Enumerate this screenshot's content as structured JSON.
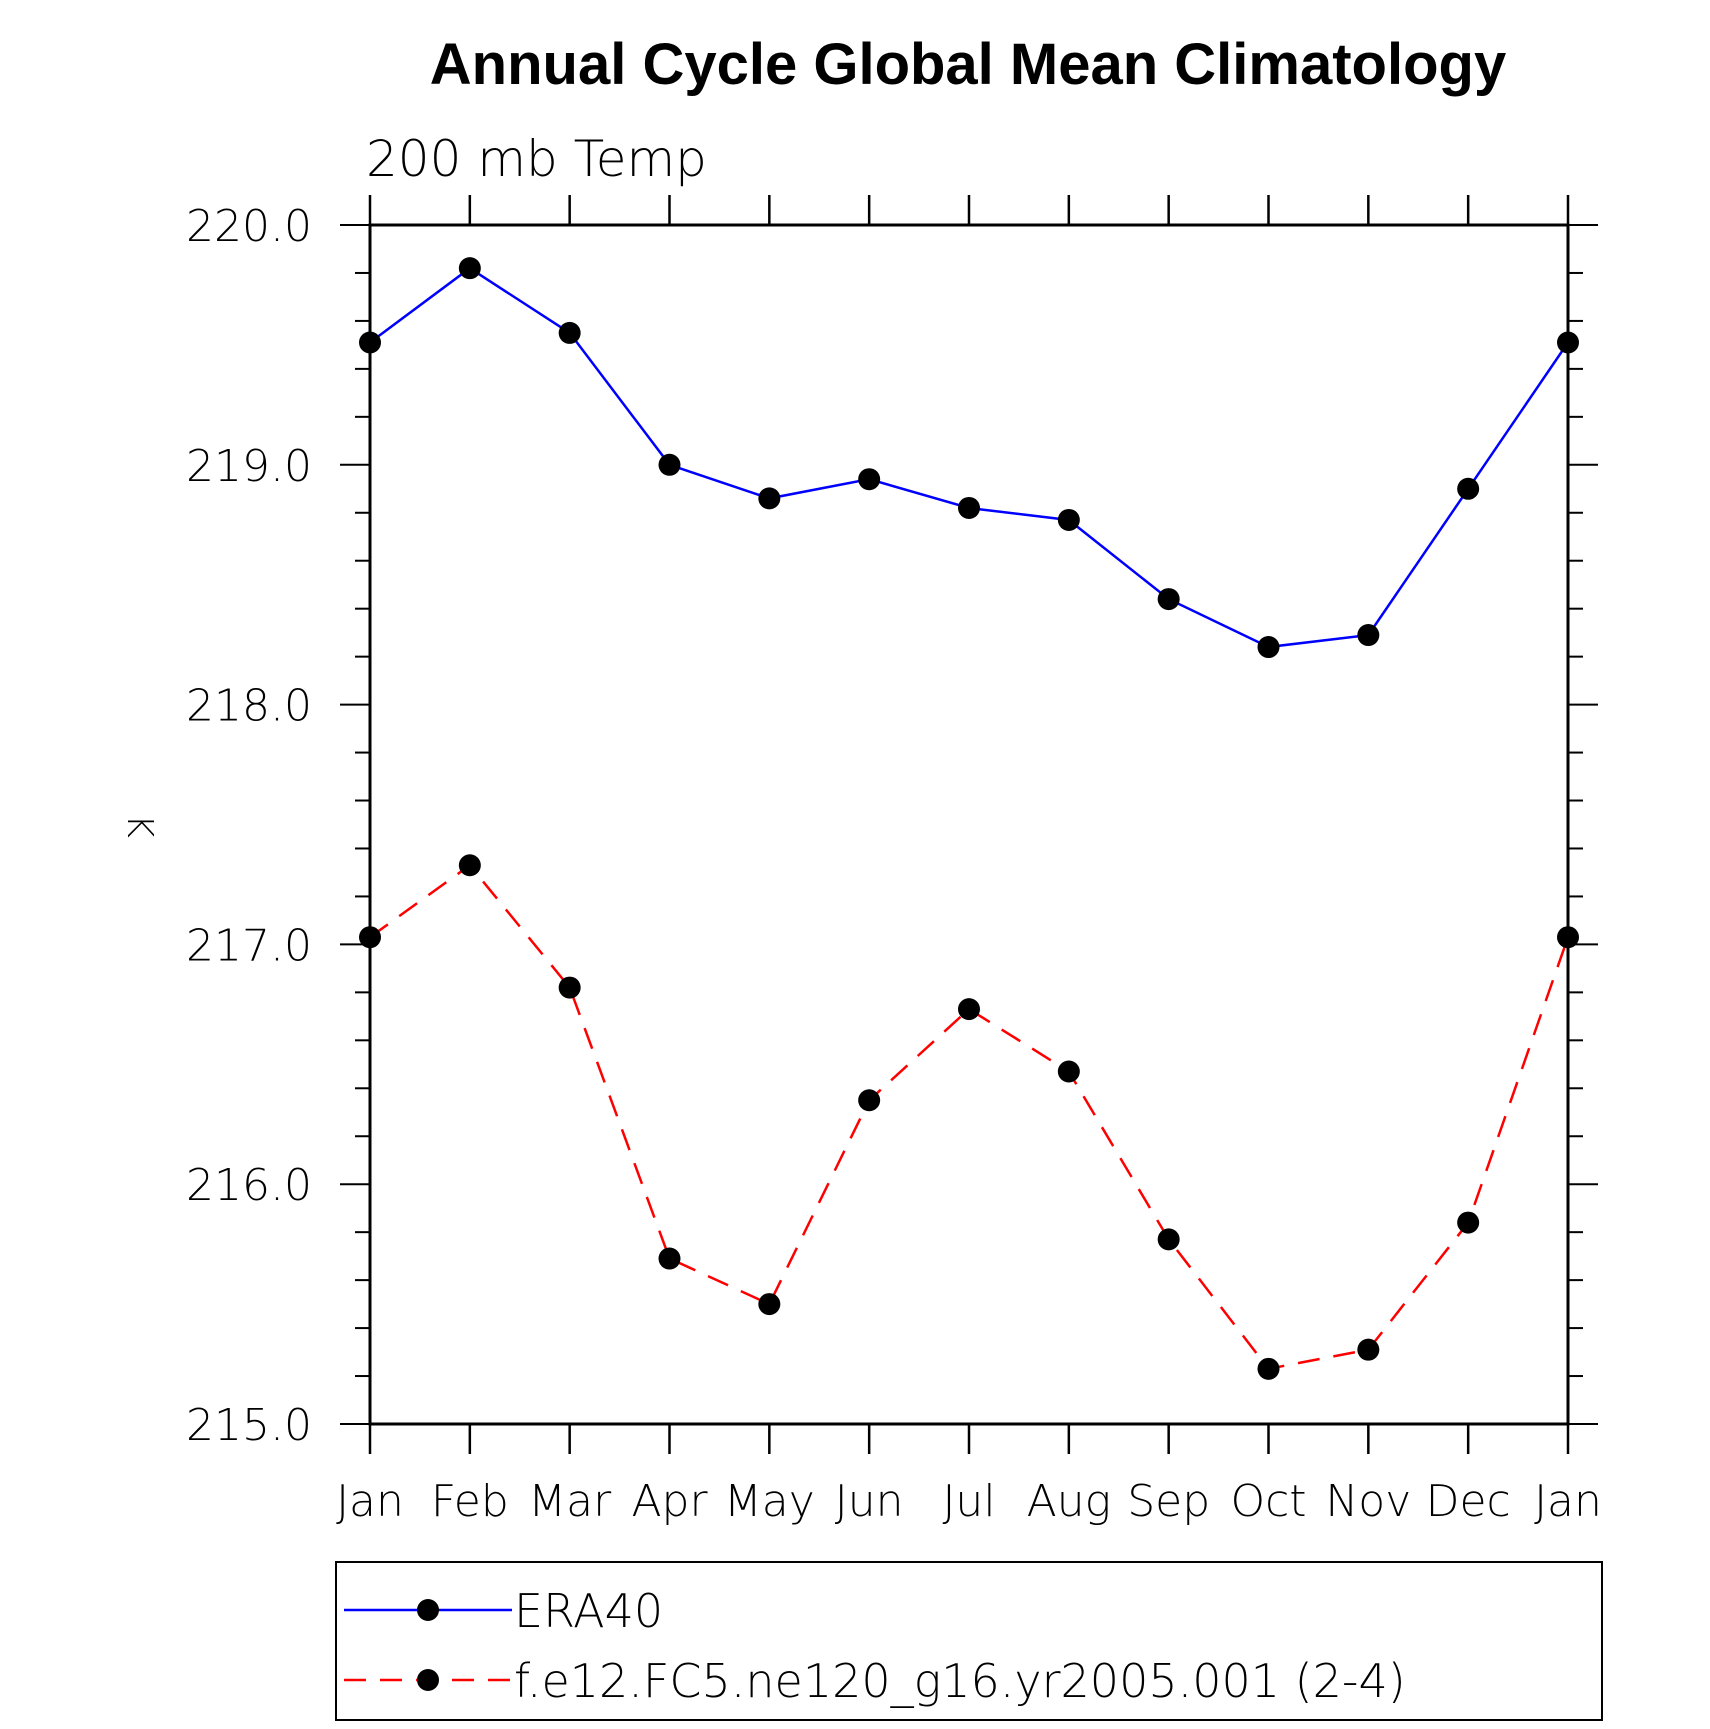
{
  "chart_data": {
    "type": "line",
    "title": "Annual Cycle Global Mean Climatology",
    "subtitle": "200 mb Temp",
    "xlabel": "",
    "ylabel": "K",
    "categories": [
      "Jan",
      "Feb",
      "Mar",
      "Apr",
      "May",
      "Jun",
      "Jul",
      "Aug",
      "Sep",
      "Oct",
      "Nov",
      "Dec",
      "Jan"
    ],
    "ylim": [
      215.0,
      220.0
    ],
    "yticks": [
      "215.0",
      "216.0",
      "217.0",
      "218.0",
      "219.0",
      "220.0"
    ],
    "grid": false,
    "legend_position": "bottom",
    "series": [
      {
        "name": "ERA40",
        "color": "#0000ff",
        "line_style": "solid",
        "marker": "filled-circle",
        "values": [
          219.51,
          219.82,
          219.55,
          219.0,
          218.86,
          218.94,
          218.82,
          218.77,
          218.44,
          218.24,
          218.29,
          218.9,
          219.51
        ]
      },
      {
        "name": "f.e12.FC5.ne120_g16.yr2005.001 (2-4)",
        "color": "#ff0000",
        "line_style": "dashed",
        "marker": "filled-circle",
        "values": [
          217.03,
          217.33,
          216.82,
          215.69,
          215.5,
          216.35,
          216.73,
          216.47,
          215.77,
          215.23,
          215.31,
          215.84,
          217.03
        ]
      }
    ]
  }
}
